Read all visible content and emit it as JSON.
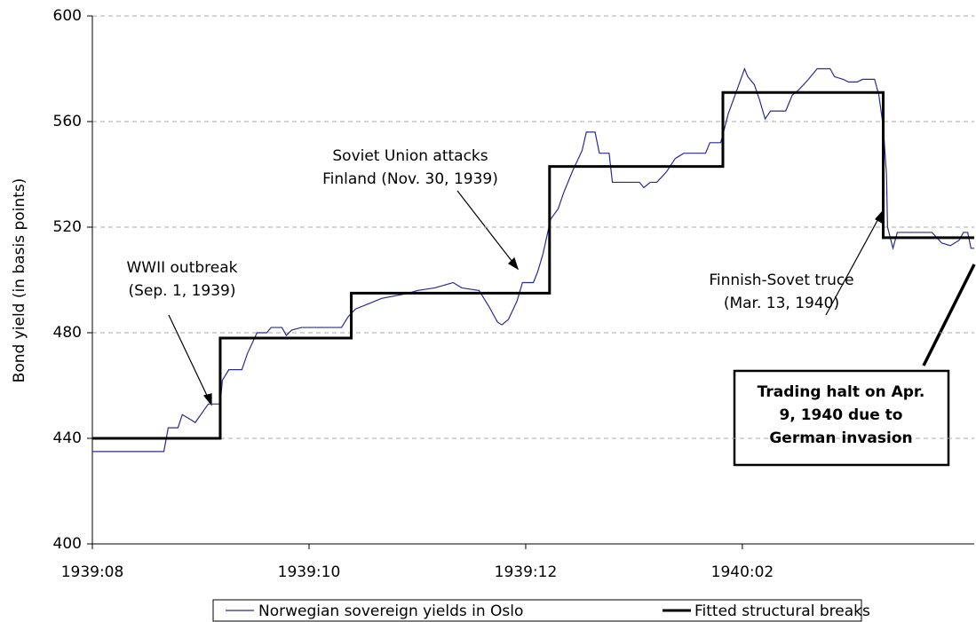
{
  "chart_data": {
    "type": "line",
    "y_axis_label": "Bond yield (in basis points)",
    "xlim": [
      0,
      8.14
    ],
    "xticks": [
      {
        "value": 0,
        "label": "1939:08"
      },
      {
        "value": 2,
        "label": "1939:10"
      },
      {
        "value": 4,
        "label": "1939:12"
      },
      {
        "value": 6,
        "label": "1940:02"
      }
    ],
    "ylim": [
      400,
      600
    ],
    "yticks": [
      400,
      440,
      480,
      520,
      560,
      600
    ],
    "grid": true,
    "legend": "bottom",
    "series": [
      {
        "name": "Norwegian sovereign yields in Oslo",
        "color": "#2b2b8c",
        "x": [
          0,
          0.66,
          0.7,
          0.79,
          0.83,
          0.91,
          0.95,
          1.07,
          1.18,
          1.2,
          1.26,
          1.38,
          1.43,
          1.52,
          1.61,
          1.65,
          1.75,
          1.79,
          1.84,
          1.93,
          2.3,
          2.36,
          2.43,
          2.55,
          2.67,
          2.92,
          3.0,
          3.16,
          3.33,
          3.41,
          3.57,
          3.66,
          3.74,
          3.78,
          3.84,
          3.92,
          3.97,
          4.07,
          4.11,
          4.16,
          4.23,
          4.3,
          4.35,
          4.43,
          4.52,
          4.56,
          4.64,
          4.68,
          4.77,
          4.8,
          5.05,
          5.09,
          5.15,
          5.21,
          5.3,
          5.38,
          5.46,
          5.66,
          5.7,
          5.8,
          5.87,
          5.95,
          6.02,
          6.05,
          6.11,
          6.16,
          6.21,
          6.26,
          6.4,
          6.46,
          6.52,
          6.61,
          6.69,
          6.81,
          6.85,
          6.93,
          6.98,
          7.06,
          7.11,
          7.22,
          7.26,
          7.3,
          7.33,
          7.34,
          7.39,
          7.43,
          7.75,
          7.84,
          7.92,
          8.0,
          8.04,
          8.08,
          8.11,
          8.14
        ],
        "values": [
          435,
          435,
          444,
          444,
          449,
          447,
          446,
          453,
          453,
          462,
          466,
          466,
          472,
          480,
          480,
          482,
          482,
          479,
          481,
          482,
          482,
          486,
          489,
          491,
          493,
          495,
          496,
          497,
          499,
          497,
          496,
          490,
          484,
          483,
          485,
          492,
          499,
          499,
          503,
          510,
          523,
          527,
          533,
          541,
          549,
          556,
          556,
          548,
          548,
          537,
          537,
          535,
          537,
          537,
          541,
          546,
          548,
          548,
          552,
          552,
          563,
          572,
          580,
          577,
          574,
          568,
          561,
          564,
          564,
          570,
          572,
          576,
          580,
          580,
          577,
          576,
          575,
          575,
          576,
          576,
          570,
          558,
          540,
          520,
          512,
          518,
          518,
          514,
          513,
          515,
          518,
          518,
          512,
          512
        ]
      },
      {
        "name": "Fitted structural breaks",
        "color": "#000000",
        "x": [
          0,
          1.18,
          1.18,
          2.39,
          2.39,
          4.22,
          4.22,
          5.82,
          5.82,
          7.3,
          7.3,
          8.14
        ],
        "values": [
          440,
          440,
          478,
          478,
          495,
          495,
          543,
          543,
          571,
          571,
          516,
          516
        ]
      }
    ],
    "annotations": [
      {
        "text": [
          "WWII outbreak",
          "(Sep. 1, 1939)"
        ]
      },
      {
        "text": [
          "Soviet Union attacks",
          "Finland (Nov. 30, 1939)"
        ]
      },
      {
        "text": [
          "Finnish-Sovet truce",
          "(Mar. 13, 1940)"
        ]
      },
      {
        "text": [
          "Trading halt on Apr.",
          "9, 1940 due to",
          "German invasion"
        ]
      }
    ]
  }
}
